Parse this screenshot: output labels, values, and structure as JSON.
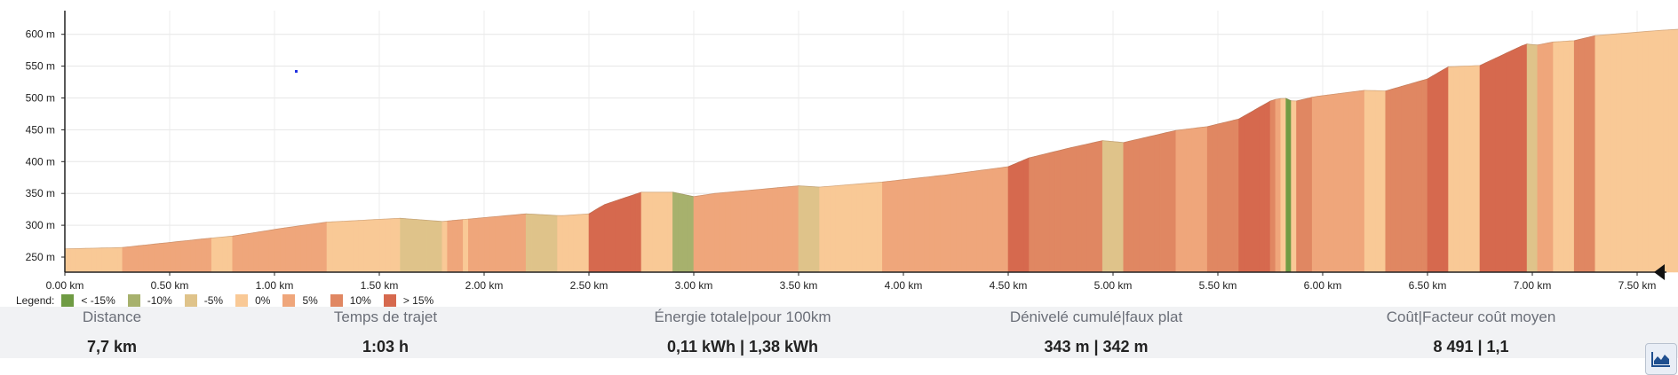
{
  "chart_data": {
    "type": "area",
    "xlabel": "",
    "ylabel": "",
    "xlim": [
      0,
      7.7
    ],
    "ylim": [
      230,
      635
    ],
    "x_ticks": [
      "0.00 km",
      "0.50 km",
      "1.00 km",
      "1.50 km",
      "2.00 km",
      "2.50 km",
      "3.00 km",
      "3.50 km",
      "4.00 km",
      "4.50 km",
      "5.00 km",
      "5.50 km",
      "6.00 km",
      "6.50 km",
      "7.00 km",
      "7.50 km"
    ],
    "x_tick_values": [
      0,
      0.5,
      1,
      1.5,
      2,
      2.5,
      3,
      3.5,
      4,
      4.5,
      5,
      5.5,
      6,
      6.5,
      7,
      7.5
    ],
    "y_ticks": [
      "250 m",
      "300 m",
      "350 m",
      "400 m",
      "450 m",
      "500 m",
      "550 m",
      "600 m"
    ],
    "y_tick_values": [
      250,
      300,
      350,
      400,
      450,
      500,
      550,
      600
    ],
    "grid": true,
    "legend_position": "bottom-left",
    "elevation_profile": {
      "distance_km": [
        0,
        0.27,
        0.7,
        0.8,
        1.05,
        1.25,
        1.6,
        1.8,
        2.0,
        2.2,
        2.37,
        2.5,
        2.57,
        2.75,
        2.9,
        3.0,
        3.1,
        3.5,
        3.6,
        3.9,
        4.2,
        4.5,
        4.6,
        4.8,
        4.95,
        5.05,
        5.3,
        5.45,
        5.6,
        5.76,
        5.82,
        5.86,
        5.96,
        6.2,
        6.3,
        6.5,
        6.6,
        6.75,
        6.97,
        7.02,
        7.1,
        7.2,
        7.3,
        7.45,
        7.6,
        7.7
      ],
      "elevation_m": [
        263,
        265,
        280,
        283,
        296,
        305,
        311,
        306,
        312,
        318,
        315,
        318,
        332,
        352,
        352,
        345,
        350,
        362,
        360,
        368,
        379,
        392,
        406,
        422,
        433,
        430,
        449,
        455,
        467,
        497,
        500,
        494,
        502,
        512,
        511,
        530,
        549,
        551,
        585,
        583,
        588,
        590,
        598,
        602,
        606,
        608
      ]
    },
    "grade_classes": [
      {
        "name": "< -15%",
        "color": "#6f9b43"
      },
      {
        "name": "-10%",
        "color": "#a7b16d"
      },
      {
        "name": "-5%",
        "color": "#dfc38a"
      },
      {
        "name": "0%",
        "color": "#f9c996"
      },
      {
        "name": "5%",
        "color": "#efa67b"
      },
      {
        "name": "10%",
        "color": "#e08762"
      },
      {
        "name": "> 15%",
        "color": "#d6694e"
      }
    ]
  },
  "legend": {
    "title": "Legend:",
    "items": [
      {
        "label": "< -15%",
        "color": "#6f9b43"
      },
      {
        "label": "-10%",
        "color": "#a7b16d"
      },
      {
        "label": "-5%",
        "color": "#dfc38a"
      },
      {
        "label": "0%",
        "color": "#f9c996"
      },
      {
        "label": "5%",
        "color": "#efa67b"
      },
      {
        "label": "10%",
        "color": "#e08762"
      },
      {
        "label": "> 15%",
        "color": "#d6694e"
      }
    ]
  },
  "stats": [
    {
      "label": "Distance",
      "value": "7,7 km"
    },
    {
      "label": "Temps de trajet",
      "value": "1:03 h"
    },
    {
      "label": "Énergie totale|pour 100km",
      "value": "0,11 kWh | 1,38 kWh"
    },
    {
      "label": "Dénivelé cumulé|faux plat",
      "value": "343 m | 342 m"
    },
    {
      "label": "Coût|Facteur coût moyen",
      "value": "8 491 | 1,1"
    }
  ],
  "chart_type_button": {
    "icon": "area-chart-icon"
  }
}
